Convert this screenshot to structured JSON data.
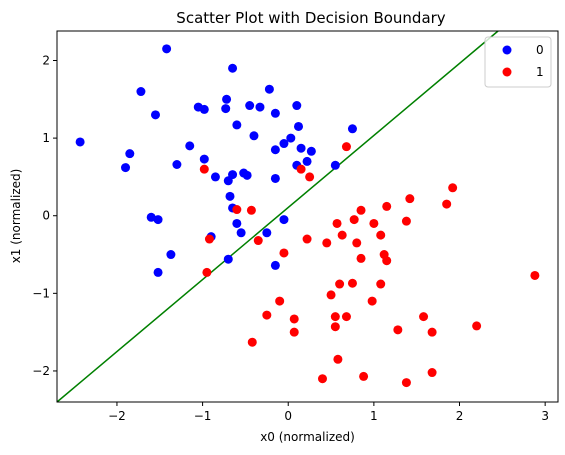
{
  "chart_data": {
    "type": "scatter",
    "title": "Scatter Plot with Decision Boundary",
    "xlabel": "x0 (normalized)",
    "ylabel": "x1 (normalized)",
    "xlim": [
      -2.7,
      3.15
    ],
    "ylim": [
      -2.4,
      2.38
    ],
    "xticks": [
      -2,
      -1,
      0,
      1,
      2,
      3
    ],
    "yticks": [
      -2,
      -1,
      0,
      1,
      2
    ],
    "xtick_labels": [
      "−2",
      "−1",
      "0",
      "1",
      "2",
      "3"
    ],
    "ytick_labels": [
      "−2",
      "−1",
      "0",
      "1",
      "2"
    ],
    "legend_position": "top-right",
    "grid": false,
    "decision_boundary": {
      "color": "#008000",
      "points": [
        [
          -2.7,
          -2.4
        ],
        [
          2.45,
          2.38
        ]
      ]
    },
    "series": [
      {
        "name": "0",
        "color": "#0000ff",
        "points": [
          [
            -2.43,
            0.95
          ],
          [
            -1.42,
            2.15
          ],
          [
            -1.72,
            1.6
          ],
          [
            -1.55,
            1.3
          ],
          [
            -1.85,
            0.8
          ],
          [
            -1.9,
            0.62
          ],
          [
            -1.3,
            0.66
          ],
          [
            -1.15,
            0.9
          ],
          [
            -1.05,
            1.4
          ],
          [
            -0.98,
            1.37
          ],
          [
            -0.72,
            1.5
          ],
          [
            -0.73,
            1.38
          ],
          [
            -0.65,
            1.9
          ],
          [
            -0.45,
            1.42
          ],
          [
            -0.33,
            1.4
          ],
          [
            -0.22,
            1.63
          ],
          [
            -0.15,
            1.32
          ],
          [
            -0.6,
            1.17
          ],
          [
            -0.4,
            1.03
          ],
          [
            -0.98,
            0.73
          ],
          [
            -0.85,
            0.5
          ],
          [
            -0.7,
            0.45
          ],
          [
            -0.65,
            0.53
          ],
          [
            -0.52,
            0.55
          ],
          [
            -0.48,
            0.52
          ],
          [
            -0.15,
            0.48
          ],
          [
            -0.68,
            0.25
          ],
          [
            -0.65,
            0.1
          ],
          [
            -0.6,
            -0.1
          ],
          [
            -0.55,
            -0.22
          ],
          [
            -1.6,
            -0.02
          ],
          [
            -1.52,
            -0.05
          ],
          [
            -1.37,
            -0.5
          ],
          [
            -1.52,
            -0.73
          ],
          [
            -0.9,
            -0.27
          ],
          [
            -0.7,
            -0.56
          ],
          [
            -0.25,
            -0.22
          ],
          [
            -0.15,
            -0.64
          ],
          [
            -0.05,
            -0.05
          ],
          [
            -0.15,
            0.85
          ],
          [
            -0.05,
            0.93
          ],
          [
            0.03,
            1.0
          ],
          [
            0.1,
            1.42
          ],
          [
            0.12,
            1.15
          ],
          [
            0.15,
            0.87
          ],
          [
            0.27,
            0.83
          ],
          [
            0.1,
            0.65
          ],
          [
            0.22,
            0.7
          ],
          [
            0.75,
            1.12
          ],
          [
            0.55,
            0.65
          ]
        ]
      },
      {
        "name": "1",
        "color": "#ff0000",
        "points": [
          [
            -0.98,
            0.6
          ],
          [
            0.15,
            0.6
          ],
          [
            0.25,
            0.5
          ],
          [
            0.68,
            0.89
          ],
          [
            -0.6,
            0.08
          ],
          [
            -0.43,
            0.07
          ],
          [
            -0.92,
            -0.3
          ],
          [
            -0.35,
            -0.32
          ],
          [
            -0.05,
            -0.48
          ],
          [
            0.22,
            -0.3
          ],
          [
            0.45,
            -0.35
          ],
          [
            0.57,
            -0.1
          ],
          [
            0.63,
            -0.25
          ],
          [
            0.77,
            -0.05
          ],
          [
            0.8,
            -0.35
          ],
          [
            0.85,
            0.07
          ],
          [
            0.85,
            -0.55
          ],
          [
            1.0,
            -0.1
          ],
          [
            1.08,
            -0.25
          ],
          [
            1.12,
            -0.5
          ],
          [
            1.15,
            -0.58
          ],
          [
            1.15,
            0.12
          ],
          [
            1.38,
            -0.07
          ],
          [
            1.42,
            0.22
          ],
          [
            1.85,
            0.15
          ],
          [
            1.92,
            0.36
          ],
          [
            -0.95,
            -0.73
          ],
          [
            -0.1,
            -1.1
          ],
          [
            -0.25,
            -1.28
          ],
          [
            0.07,
            -1.33
          ],
          [
            0.07,
            -1.5
          ],
          [
            0.5,
            -1.02
          ],
          [
            0.6,
            -0.88
          ],
          [
            0.75,
            -0.87
          ],
          [
            0.55,
            -1.3
          ],
          [
            0.55,
            -1.43
          ],
          [
            0.68,
            -1.3
          ],
          [
            0.58,
            -1.85
          ],
          [
            0.98,
            -1.1
          ],
          [
            1.08,
            -0.88
          ],
          [
            1.28,
            -1.47
          ],
          [
            1.58,
            -1.3
          ],
          [
            1.68,
            -1.5
          ],
          [
            1.68,
            -2.02
          ],
          [
            2.2,
            -1.42
          ],
          [
            2.88,
            -0.77
          ],
          [
            -0.42,
            -1.63
          ],
          [
            0.4,
            -2.1
          ],
          [
            0.88,
            -2.07
          ],
          [
            1.38,
            -2.15
          ]
        ]
      }
    ]
  }
}
